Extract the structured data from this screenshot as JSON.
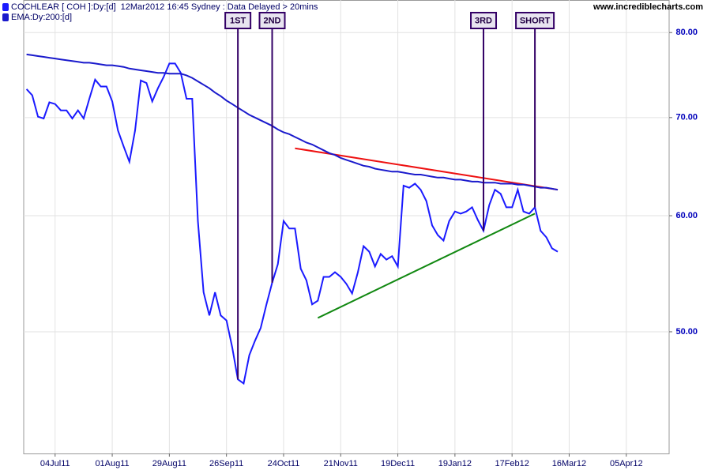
{
  "chart_data": {
    "type": "line",
    "series": [
      {
        "name": "COCHLEAR [ COH ]:Dy:[d]",
        "color": "#1a1aff",
        "values": [
          73.2,
          72.5,
          70.1,
          69.9,
          71.7,
          71.5,
          70.8,
          70.8,
          69.9,
          70.8,
          69.9,
          72.1,
          74.3,
          73.5,
          73.5,
          71.8,
          68.6,
          66.9,
          65.3,
          68.6,
          74.2,
          73.9,
          71.8,
          73.3,
          74.6,
          76.2,
          76.2,
          75.1,
          72.1,
          72.1,
          59.5,
          53.2,
          51.3,
          53.2,
          51.3,
          50.9,
          48.8,
          46.4,
          46.1,
          48.2,
          49.3,
          50.3,
          52.2,
          54.0,
          55.6,
          59.5,
          58.8,
          58.8,
          55.2,
          54.2,
          52.2,
          52.5,
          54.5,
          54.5,
          54.9,
          54.5,
          53.9,
          53.1,
          54.9,
          57.2,
          56.7,
          55.4,
          56.5,
          56.0,
          56.3,
          55.4,
          62.9,
          62.7,
          63.1,
          62.5,
          61.4,
          59.1,
          58.2,
          57.7,
          59.5,
          60.4,
          60.2,
          60.4,
          60.8,
          59.6,
          58.6,
          61.0,
          62.5,
          62.1,
          60.8,
          60.8,
          62.5,
          60.4,
          60.2,
          60.8,
          58.6,
          58.0,
          57.0,
          56.7,
          null,
          null,
          null,
          null,
          null,
          null,
          null,
          null,
          null,
          null,
          null,
          null,
          null,
          null,
          null,
          null,
          null,
          null,
          null
        ]
      },
      {
        "name": "EMA:Dy:200:[d]",
        "color": "#1a1acc",
        "values": [
          77.3,
          77.2,
          77.1,
          77.0,
          76.9,
          76.8,
          76.7,
          76.6,
          76.5,
          76.4,
          76.3,
          76.3,
          76.2,
          76.1,
          76.0,
          76.0,
          75.9,
          75.8,
          75.6,
          75.5,
          75.4,
          75.3,
          75.2,
          75.1,
          75.1,
          75.0,
          75.0,
          75.0,
          74.8,
          74.5,
          74.1,
          73.7,
          73.3,
          72.8,
          72.4,
          71.9,
          71.5,
          71.1,
          70.7,
          70.3,
          70.0,
          69.7,
          69.4,
          69.1,
          68.7,
          68.4,
          68.2,
          67.9,
          67.6,
          67.3,
          67.1,
          66.8,
          66.5,
          66.2,
          66.0,
          65.7,
          65.5,
          65.3,
          65.1,
          64.9,
          64.8,
          64.6,
          64.5,
          64.4,
          64.3,
          64.3,
          64.2,
          64.1,
          64.0,
          64.0,
          63.9,
          63.8,
          63.7,
          63.7,
          63.6,
          63.5,
          63.5,
          63.4,
          63.3,
          63.3,
          63.2,
          63.2,
          63.2,
          63.1,
          63.1,
          63.1,
          63.0,
          63.0,
          62.9,
          62.8,
          62.7,
          62.7,
          62.6,
          62.5,
          null,
          null,
          null,
          null,
          null,
          null,
          null,
          null,
          null,
          null,
          null,
          null,
          null,
          null,
          null,
          null,
          null,
          null,
          null
        ]
      }
    ],
    "subtitle": "12Mar2012 16:45 Sydney : Data Delayed > 20mins",
    "source": "www.incrediblecharts.com",
    "categories": [
      null,
      null,
      null,
      null,
      null,
      "04Jul11",
      null,
      null,
      null,
      null,
      null,
      null,
      null,
      null,
      null,
      "01Aug11",
      null,
      null,
      null,
      null,
      null,
      null,
      null,
      null,
      null,
      "29Aug11",
      null,
      null,
      null,
      null,
      null,
      null,
      null,
      null,
      null,
      "26Sep11",
      null,
      null,
      null,
      null,
      null,
      null,
      null,
      null,
      null,
      "24Oct11",
      null,
      null,
      null,
      null,
      null,
      null,
      null,
      null,
      null,
      "21Nov11",
      null,
      null,
      null,
      null,
      null,
      null,
      null,
      null,
      null,
      "19Dec11",
      null,
      null,
      null,
      null,
      null,
      null,
      null,
      null,
      null,
      "19Jan12",
      null,
      null,
      null,
      null,
      null,
      null,
      null,
      null,
      null,
      "17Feb12",
      null,
      null,
      null,
      null,
      null,
      null,
      null,
      null,
      null,
      "16Mar12",
      null,
      null,
      null,
      null,
      null,
      null,
      null,
      null,
      null,
      "05Apr12",
      null,
      null,
      null,
      null,
      null,
      null,
      null
    ],
    "ylim": [
      41.3,
      84.2
    ],
    "yticks": [
      {
        "value": 50,
        "label": "50.00"
      },
      {
        "value": 60,
        "label": "60.00"
      },
      {
        "value": 70,
        "label": "70.00"
      },
      {
        "value": 80,
        "label": "80.00"
      }
    ],
    "log_scale": true,
    "grid": true,
    "trendlines": [
      {
        "color": "#ee1111",
        "start": {
          "index": 47,
          "value": 66.7
        },
        "end": {
          "index": 93,
          "value": 62.5
        }
      },
      {
        "color": "#118811",
        "start": {
          "index": 51,
          "value": 51.1
        },
        "end": {
          "index": 89,
          "value": 60.2
        }
      }
    ],
    "annotations": [
      {
        "text": "1ST",
        "index": 37
      },
      {
        "text": "2ND",
        "index": 43
      },
      {
        "text": "3RD",
        "index": 80
      },
      {
        "text": "SHORT",
        "index": 89
      }
    ],
    "annotation_color": "#330066"
  }
}
